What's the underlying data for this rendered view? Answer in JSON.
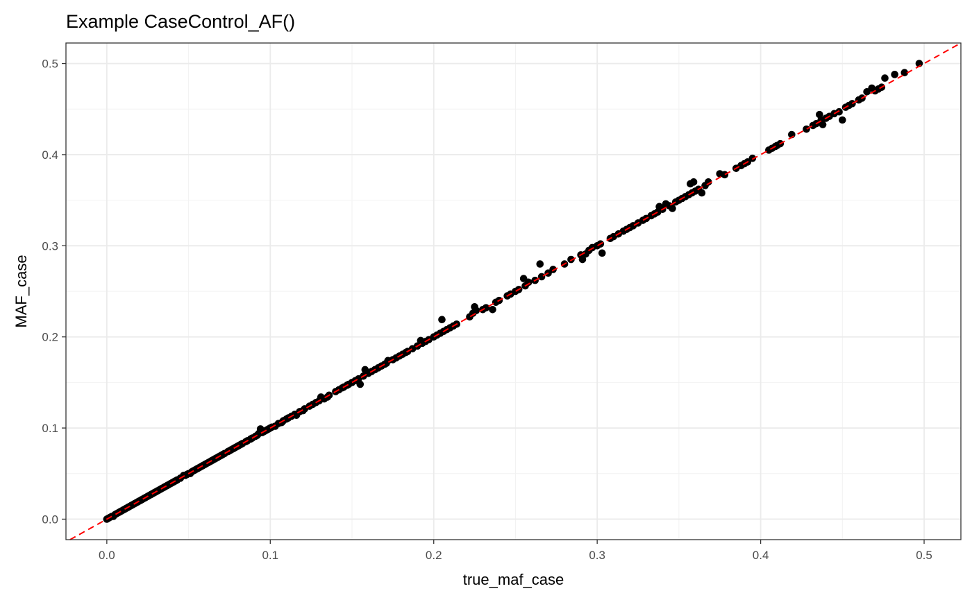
{
  "chart_data": {
    "type": "scatter",
    "title": "Example CaseControl_AF()",
    "xlabel": "true_maf_case",
    "ylabel": "MAF_case",
    "xlim": [
      -0.025,
      0.5225
    ],
    "ylim": [
      -0.0225,
      0.5225
    ],
    "x_ticks": [
      0.0,
      0.1,
      0.2,
      0.3,
      0.4,
      0.5
    ],
    "x_tick_labels": [
      "0.0",
      "0.1",
      "0.2",
      "0.3",
      "0.4",
      "0.5"
    ],
    "y_ticks": [
      0.0,
      0.1,
      0.2,
      0.3,
      0.4,
      0.5
    ],
    "y_tick_labels": [
      "0.0",
      "0.1",
      "0.2",
      "0.3",
      "0.4",
      "0.5"
    ],
    "grid": true,
    "reference_line": {
      "slope": 1,
      "intercept": 0,
      "style": "dashed",
      "color": "#ff0000"
    },
    "point_color": "#000000",
    "points": [
      [
        0.0,
        0.0
      ],
      [
        0.001,
        0.001
      ],
      [
        0.002,
        0.002
      ],
      [
        0.003,
        0.003
      ],
      [
        0.004,
        0.003
      ],
      [
        0.005,
        0.005
      ],
      [
        0.006,
        0.006
      ],
      [
        0.007,
        0.007
      ],
      [
        0.008,
        0.008
      ],
      [
        0.009,
        0.009
      ],
      [
        0.01,
        0.01
      ],
      [
        0.011,
        0.011
      ],
      [
        0.012,
        0.012
      ],
      [
        0.013,
        0.013
      ],
      [
        0.014,
        0.014
      ],
      [
        0.015,
        0.015
      ],
      [
        0.016,
        0.016
      ],
      [
        0.017,
        0.017
      ],
      [
        0.018,
        0.018
      ],
      [
        0.019,
        0.019
      ],
      [
        0.02,
        0.02
      ],
      [
        0.021,
        0.021
      ],
      [
        0.022,
        0.022
      ],
      [
        0.023,
        0.023
      ],
      [
        0.024,
        0.024
      ],
      [
        0.025,
        0.025
      ],
      [
        0.026,
        0.026
      ],
      [
        0.027,
        0.027
      ],
      [
        0.028,
        0.028
      ],
      [
        0.029,
        0.029
      ],
      [
        0.03,
        0.03
      ],
      [
        0.031,
        0.031
      ],
      [
        0.032,
        0.032
      ],
      [
        0.033,
        0.033
      ],
      [
        0.034,
        0.034
      ],
      [
        0.035,
        0.035
      ],
      [
        0.036,
        0.036
      ],
      [
        0.037,
        0.037
      ],
      [
        0.038,
        0.038
      ],
      [
        0.039,
        0.039
      ],
      [
        0.04,
        0.04
      ],
      [
        0.041,
        0.041
      ],
      [
        0.042,
        0.042
      ],
      [
        0.043,
        0.043
      ],
      [
        0.045,
        0.045
      ],
      [
        0.047,
        0.048
      ],
      [
        0.048,
        0.048
      ],
      [
        0.049,
        0.049
      ],
      [
        0.05,
        0.05
      ],
      [
        0.051,
        0.05
      ],
      [
        0.052,
        0.052
      ],
      [
        0.053,
        0.053
      ],
      [
        0.054,
        0.054
      ],
      [
        0.055,
        0.055
      ],
      [
        0.056,
        0.056
      ],
      [
        0.057,
        0.057
      ],
      [
        0.058,
        0.058
      ],
      [
        0.059,
        0.059
      ],
      [
        0.06,
        0.06
      ],
      [
        0.061,
        0.061
      ],
      [
        0.062,
        0.062
      ],
      [
        0.063,
        0.063
      ],
      [
        0.064,
        0.064
      ],
      [
        0.065,
        0.065
      ],
      [
        0.066,
        0.066
      ],
      [
        0.067,
        0.067
      ],
      [
        0.068,
        0.068
      ],
      [
        0.069,
        0.069
      ],
      [
        0.07,
        0.07
      ],
      [
        0.071,
        0.071
      ],
      [
        0.072,
        0.072
      ],
      [
        0.074,
        0.074
      ],
      [
        0.075,
        0.075
      ],
      [
        0.076,
        0.076
      ],
      [
        0.077,
        0.077
      ],
      [
        0.078,
        0.078
      ],
      [
        0.079,
        0.079
      ],
      [
        0.08,
        0.08
      ],
      [
        0.081,
        0.081
      ],
      [
        0.082,
        0.082
      ],
      [
        0.083,
        0.083
      ],
      [
        0.085,
        0.085
      ],
      [
        0.086,
        0.086
      ],
      [
        0.088,
        0.088
      ],
      [
        0.089,
        0.089
      ],
      [
        0.091,
        0.091
      ],
      [
        0.092,
        0.092
      ],
      [
        0.093,
        0.094
      ],
      [
        0.094,
        0.099
      ],
      [
        0.095,
        0.095
      ],
      [
        0.096,
        0.096
      ],
      [
        0.097,
        0.097
      ],
      [
        0.098,
        0.098
      ],
      [
        0.099,
        0.099
      ],
      [
        0.1,
        0.1
      ],
      [
        0.101,
        0.101
      ],
      [
        0.103,
        0.102
      ],
      [
        0.105,
        0.105
      ],
      [
        0.107,
        0.106
      ],
      [
        0.108,
        0.108
      ],
      [
        0.11,
        0.11
      ],
      [
        0.111,
        0.111
      ],
      [
        0.113,
        0.113
      ],
      [
        0.115,
        0.115
      ],
      [
        0.116,
        0.114
      ],
      [
        0.118,
        0.118
      ],
      [
        0.12,
        0.119
      ],
      [
        0.121,
        0.121
      ],
      [
        0.124,
        0.124
      ],
      [
        0.126,
        0.126
      ],
      [
        0.128,
        0.128
      ],
      [
        0.13,
        0.13
      ],
      [
        0.131,
        0.134
      ],
      [
        0.133,
        0.132
      ],
      [
        0.135,
        0.134
      ],
      [
        0.136,
        0.136
      ],
      [
        0.14,
        0.14
      ],
      [
        0.142,
        0.142
      ],
      [
        0.144,
        0.144
      ],
      [
        0.145,
        0.145
      ],
      [
        0.147,
        0.147
      ],
      [
        0.148,
        0.148
      ],
      [
        0.15,
        0.15
      ],
      [
        0.152,
        0.152
      ],
      [
        0.154,
        0.154
      ],
      [
        0.155,
        0.148
      ],
      [
        0.157,
        0.157
      ],
      [
        0.158,
        0.164
      ],
      [
        0.16,
        0.16
      ],
      [
        0.162,
        0.162
      ],
      [
        0.164,
        0.164
      ],
      [
        0.166,
        0.166
      ],
      [
        0.168,
        0.168
      ],
      [
        0.17,
        0.17
      ],
      [
        0.171,
        0.171
      ],
      [
        0.172,
        0.174
      ],
      [
        0.175,
        0.175
      ],
      [
        0.177,
        0.177
      ],
      [
        0.179,
        0.179
      ],
      [
        0.181,
        0.181
      ],
      [
        0.183,
        0.183
      ],
      [
        0.184,
        0.184
      ],
      [
        0.187,
        0.187
      ],
      [
        0.19,
        0.19
      ],
      [
        0.192,
        0.196
      ],
      [
        0.193,
        0.193
      ],
      [
        0.195,
        0.195
      ],
      [
        0.197,
        0.197
      ],
      [
        0.2,
        0.2
      ],
      [
        0.202,
        0.202
      ],
      [
        0.204,
        0.204
      ],
      [
        0.205,
        0.219
      ],
      [
        0.206,
        0.206
      ],
      [
        0.208,
        0.208
      ],
      [
        0.21,
        0.21
      ],
      [
        0.212,
        0.212
      ],
      [
        0.214,
        0.214
      ],
      [
        0.222,
        0.222
      ],
      [
        0.224,
        0.226
      ],
      [
        0.225,
        0.233
      ],
      [
        0.226,
        0.229
      ],
      [
        0.23,
        0.23
      ],
      [
        0.232,
        0.232
      ],
      [
        0.236,
        0.23
      ],
      [
        0.238,
        0.238
      ],
      [
        0.24,
        0.24
      ],
      [
        0.245,
        0.245
      ],
      [
        0.247,
        0.247
      ],
      [
        0.25,
        0.25
      ],
      [
        0.252,
        0.252
      ],
      [
        0.255,
        0.264
      ],
      [
        0.256,
        0.256
      ],
      [
        0.258,
        0.26
      ],
      [
        0.262,
        0.262
      ],
      [
        0.265,
        0.28
      ],
      [
        0.266,
        0.266
      ],
      [
        0.27,
        0.27
      ],
      [
        0.273,
        0.274
      ],
      [
        0.28,
        0.28
      ],
      [
        0.284,
        0.285
      ],
      [
        0.29,
        0.29
      ],
      [
        0.291,
        0.285
      ],
      [
        0.293,
        0.291
      ],
      [
        0.295,
        0.295
      ],
      [
        0.297,
        0.298
      ],
      [
        0.3,
        0.3
      ],
      [
        0.302,
        0.302
      ],
      [
        0.303,
        0.292
      ],
      [
        0.308,
        0.308
      ],
      [
        0.31,
        0.31
      ],
      [
        0.313,
        0.313
      ],
      [
        0.316,
        0.316
      ],
      [
        0.318,
        0.318
      ],
      [
        0.32,
        0.32
      ],
      [
        0.322,
        0.322
      ],
      [
        0.325,
        0.325
      ],
      [
        0.328,
        0.328
      ],
      [
        0.33,
        0.33
      ],
      [
        0.333,
        0.333
      ],
      [
        0.335,
        0.335
      ],
      [
        0.337,
        0.337
      ],
      [
        0.338,
        0.343
      ],
      [
        0.34,
        0.34
      ],
      [
        0.342,
        0.346
      ],
      [
        0.344,
        0.344
      ],
      [
        0.346,
        0.341
      ],
      [
        0.348,
        0.348
      ],
      [
        0.35,
        0.35
      ],
      [
        0.352,
        0.352
      ],
      [
        0.354,
        0.354
      ],
      [
        0.356,
        0.356
      ],
      [
        0.357,
        0.368
      ],
      [
        0.358,
        0.358
      ],
      [
        0.359,
        0.37
      ],
      [
        0.36,
        0.36
      ],
      [
        0.362,
        0.362
      ],
      [
        0.364,
        0.358
      ],
      [
        0.366,
        0.366
      ],
      [
        0.368,
        0.37
      ],
      [
        0.375,
        0.379
      ],
      [
        0.378,
        0.378
      ],
      [
        0.385,
        0.385
      ],
      [
        0.388,
        0.388
      ],
      [
        0.39,
        0.39
      ],
      [
        0.392,
        0.392
      ],
      [
        0.395,
        0.396
      ],
      [
        0.405,
        0.405
      ],
      [
        0.407,
        0.407
      ],
      [
        0.409,
        0.409
      ],
      [
        0.41,
        0.41
      ],
      [
        0.412,
        0.412
      ],
      [
        0.419,
        0.422
      ],
      [
        0.428,
        0.428
      ],
      [
        0.432,
        0.432
      ],
      [
        0.434,
        0.434
      ],
      [
        0.436,
        0.444
      ],
      [
        0.437,
        0.438
      ],
      [
        0.438,
        0.433
      ],
      [
        0.44,
        0.44
      ],
      [
        0.442,
        0.442
      ],
      [
        0.445,
        0.445
      ],
      [
        0.448,
        0.447
      ],
      [
        0.45,
        0.438
      ],
      [
        0.452,
        0.452
      ],
      [
        0.454,
        0.454
      ],
      [
        0.456,
        0.456
      ],
      [
        0.46,
        0.46
      ],
      [
        0.462,
        0.462
      ],
      [
        0.465,
        0.469
      ],
      [
        0.468,
        0.473
      ],
      [
        0.47,
        0.47
      ],
      [
        0.472,
        0.472
      ],
      [
        0.474,
        0.474
      ],
      [
        0.476,
        0.484
      ],
      [
        0.482,
        0.488
      ],
      [
        0.488,
        0.49
      ],
      [
        0.497,
        0.5
      ]
    ]
  }
}
